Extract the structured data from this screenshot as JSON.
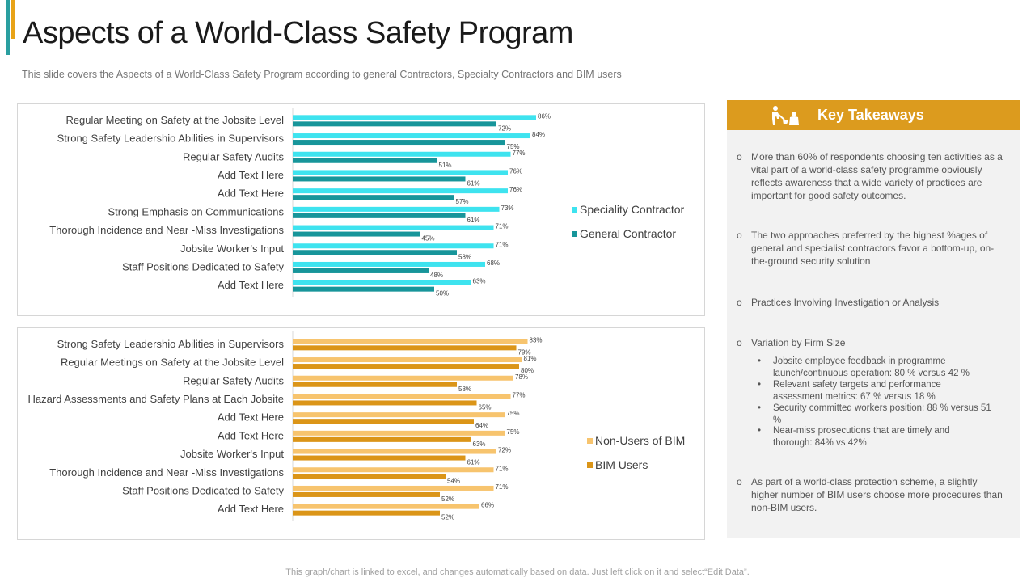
{
  "slide": {
    "title": "Aspects of a World-Class Safety Program",
    "subtitle": "This slide covers the Aspects of a World-Class Safety Program according to general Contractors, Specialty Contractors and BIM users",
    "footer": "This graph/chart is linked to excel, and changes automatically based on data. Just left click on it and select“Edit Data”.",
    "accent_colors": [
      "#2a9fa0",
      "#e8a317"
    ]
  },
  "chart_data": [
    {
      "type": "bar",
      "orientation": "horizontal",
      "categories": [
        "Regular Meeting on Safety at the Jobsite Level",
        "Strong Safety Leadershio Abilities in Supervisors",
        "Regular Safety Audits",
        "Add Text Here",
        "Add Text Here",
        "Strong Emphasis on Communications",
        "Thorough Incidence and Near -Miss Investigations",
        "Jobsite Worker's Input",
        "Staff Positions Dedicated to Safety",
        "Add Text Here"
      ],
      "series": [
        {
          "name": "Speciality Contractor",
          "color": "#3ee3ef",
          "values": [
            86,
            84,
            77,
            76,
            76,
            73,
            71,
            71,
            68,
            63
          ]
        },
        {
          "name": "General Contractor",
          "color": "#17959a",
          "values": [
            72,
            75,
            51,
            61,
            57,
            61,
            45,
            58,
            48,
            50
          ]
        }
      ],
      "value_suffix": "%",
      "xlim": [
        0,
        100
      ],
      "legend": "right"
    },
    {
      "type": "bar",
      "orientation": "horizontal",
      "categories": [
        "Strong Safety Leadershio Abilities in Supervisors",
        "Regular Meetings on Safety at the Jobsite Level",
        "Regular Safety Audits",
        "Hazard Assessments and  Safety Plans at Each Jobsite",
        "Add Text Here",
        "Add Text Here",
        "Jobsite Worker's Input",
        "Thorough Incidence and Near -Miss Investigations",
        "Staff Positions Dedicated to Safety",
        "Add Text Here"
      ],
      "series": [
        {
          "name": "Non-Users of BIM",
          "color": "#f7c46e",
          "values": [
            83,
            81,
            78,
            77,
            75,
            75,
            72,
            71,
            71,
            66
          ]
        },
        {
          "name": "BIM Users",
          "color": "#db9518",
          "values": [
            79,
            80,
            58,
            65,
            64,
            63,
            61,
            54,
            52,
            52
          ]
        }
      ],
      "value_suffix": "%",
      "xlim": [
        0,
        100
      ],
      "legend": "right"
    }
  ],
  "takeaways": {
    "header": "Key Takeaways",
    "header_color": "#dc9b1e",
    "icon": "construction-worker-icon",
    "bullet": "o",
    "sub_bullet": "•",
    "items": [
      "More than 60% of respondents choosing ten activities as a vital part of a world-class safety programme obviously reflects awareness that a wide variety of practices are important for good safety outcomes.",
      "The two approaches preferred by the highest %ages of general and specialist contractors favor a bottom-up, on-the-ground security solution",
      "Practices Involving Investigation or Analysis",
      "Variation by Firm Size",
      "As part of a world-class protection scheme, a slightly higher number of BIM users choose more procedures than non-BIM users."
    ],
    "sub_items": [
      "Jobsite employee feedback in programme launch/continuous operation: 80 % versus 42 %",
      "Relevant safety targets and performance assessment metrics: 67 % versus 18 %",
      "Security committed workers position: 88 % versus 51 %",
      "Near-miss prosecutions that are timely and thorough: 84% vs 42%"
    ]
  }
}
